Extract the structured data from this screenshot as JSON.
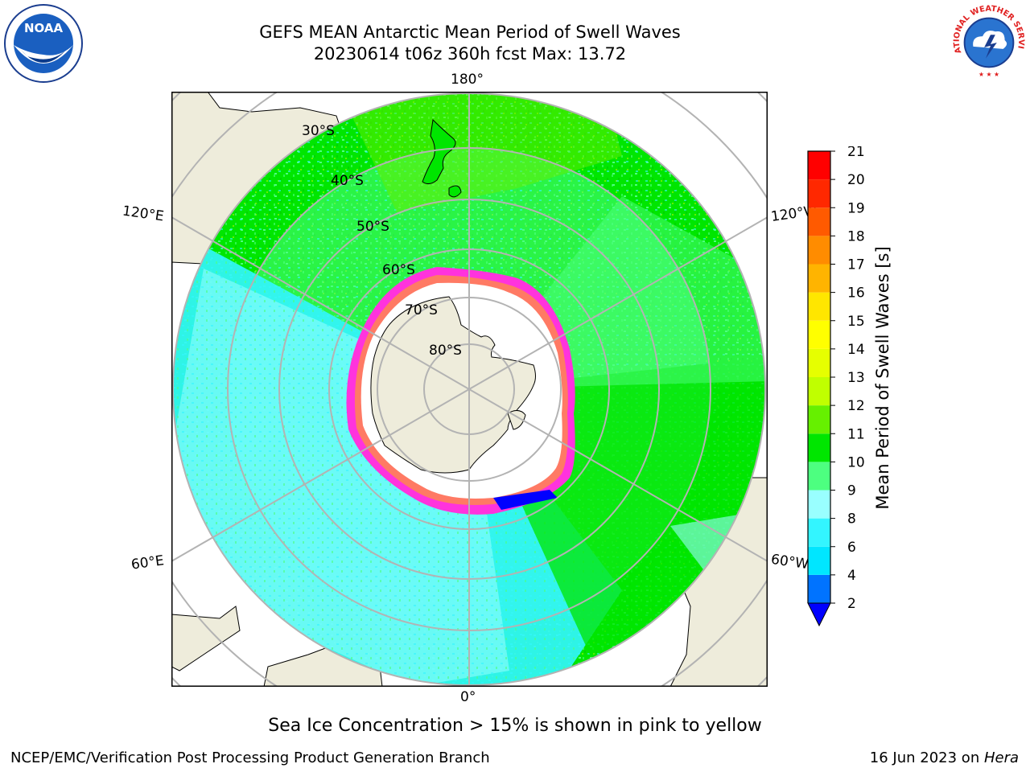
{
  "header": {
    "title_line1": "GEFS MEAN Antarctic Mean Period of Swell Waves",
    "title_line2": "20230614 t06z 360h fcst   Max: 13.72"
  },
  "logos": {
    "left": {
      "text": "NOAA",
      "icon": "noaa-logo"
    },
    "right": {
      "text": "NATIONAL WEATHER SERVICE",
      "icon": "nws-logo"
    }
  },
  "map": {
    "projection": "south-polar-stereographic",
    "longitude_labels": {
      "top": "180°",
      "bottom": "0°",
      "upper_left": "120°E",
      "upper_right": "120°W",
      "lower_left": "60°E",
      "lower_right": "60°W"
    },
    "latitude_labels": [
      "30°S",
      "40°S",
      "50°S",
      "60°S",
      "70°S",
      "80°S"
    ],
    "colors": {
      "land": "#eeecdb",
      "ice_mask": "#ffffff",
      "grid": "#b3b3b3",
      "coast": "#000000",
      "ice_edge": "#ff33dd"
    }
  },
  "colorbar": {
    "label": "Mean Period of Swell Waves [s]",
    "ticks": [
      "2",
      "4",
      "6",
      "8",
      "9",
      "10",
      "11",
      "12",
      "13",
      "14",
      "15",
      "16",
      "17",
      "18",
      "19",
      "20",
      "21"
    ],
    "bins": [
      {
        "color": "#0073ff"
      },
      {
        "color": "#00e6ff"
      },
      {
        "color": "#33f5ff"
      },
      {
        "color": "#99ffff"
      },
      {
        "color": "#4dff80"
      },
      {
        "color": "#00e600"
      },
      {
        "color": "#66f000"
      },
      {
        "color": "#c0ff00"
      },
      {
        "color": "#e6ff00"
      },
      {
        "color": "#ffff00"
      },
      {
        "color": "#ffe600"
      },
      {
        "color": "#ffb400"
      },
      {
        "color": "#ff8c00"
      },
      {
        "color": "#ff5a00"
      },
      {
        "color": "#ff2800"
      },
      {
        "color": "#ff0000"
      }
    ],
    "under_color": "#0000ff"
  },
  "note": "Sea Ice Concentration > 15% is shown in pink to yellow",
  "footer": {
    "left": "NCEP/EMC/Verification Post Processing Product Generation Branch",
    "date": "16 Jun 2023 on ",
    "machine": "Hera"
  }
}
